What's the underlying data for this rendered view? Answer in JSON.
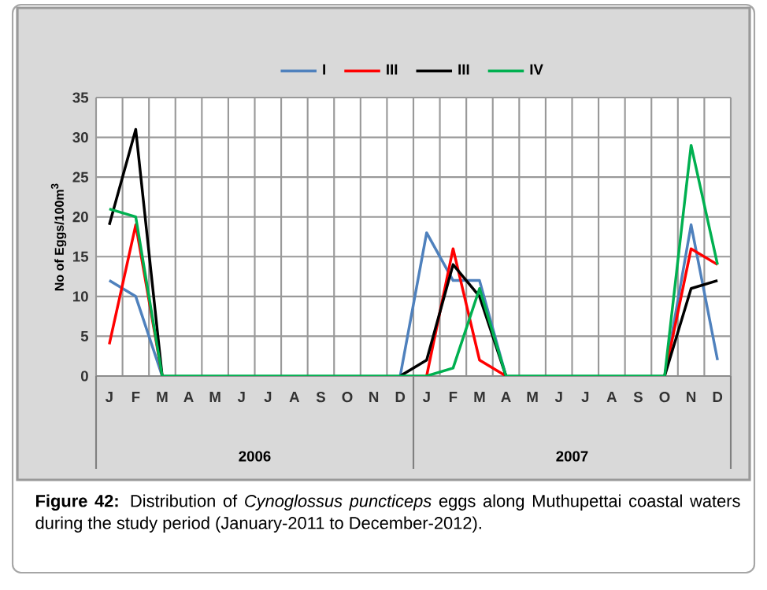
{
  "chart_data": {
    "type": "line",
    "categories": [
      "J",
      "F",
      "M",
      "A",
      "M",
      "J",
      "J",
      "A",
      "S",
      "O",
      "N",
      "D",
      "J",
      "F",
      "M",
      "A",
      "M",
      "J",
      "J",
      "A",
      "S",
      "O",
      "N",
      "D"
    ],
    "ylabel": "No of Eggs/100m$^{3}$",
    "series": [
      {
        "name": "I",
        "color": "#4f81bd",
        "values": [
          12,
          10,
          0,
          null,
          null,
          null,
          null,
          null,
          null,
          null,
          null,
          0,
          18,
          12,
          12,
          0,
          null,
          null,
          null,
          null,
          null,
          0,
          19,
          2
        ]
      },
      {
        "name": "III",
        "color": "#ff0000",
        "values": [
          4,
          19,
          0,
          null,
          null,
          null,
          null,
          null,
          null,
          null,
          null,
          null,
          0,
          16,
          2,
          0,
          null,
          null,
          null,
          null,
          null,
          0,
          16,
          14
        ]
      },
      {
        "name": "III",
        "color": "#000000",
        "values": [
          19,
          31,
          0,
          null,
          null,
          null,
          null,
          null,
          null,
          null,
          null,
          0,
          2,
          14,
          10,
          0,
          null,
          null,
          null,
          null,
          null,
          0,
          11,
          12
        ]
      },
      {
        "name": "IV",
        "color": "#00b050",
        "values": [
          21,
          20,
          0,
          0,
          0,
          0,
          0,
          0,
          0,
          0,
          0,
          0,
          0,
          1,
          11,
          0,
          0,
          0,
          0,
          0,
          0,
          0,
          29,
          14
        ]
      }
    ],
    "ylim": [
      0,
      35
    ],
    "yticks": [
      0,
      5,
      10,
      15,
      20,
      25,
      30,
      35
    ],
    "grid": true,
    "legend": "top",
    "marker": "none",
    "line_style": "solid",
    "annotations": [
      "2006",
      "2007",
      "**Figure 42:** Distribution of *Cynoglossus puncticeps* eggs along Muthupettai coastal waters during the study period (January-2011 to December-2012)."
    ]
  }
}
